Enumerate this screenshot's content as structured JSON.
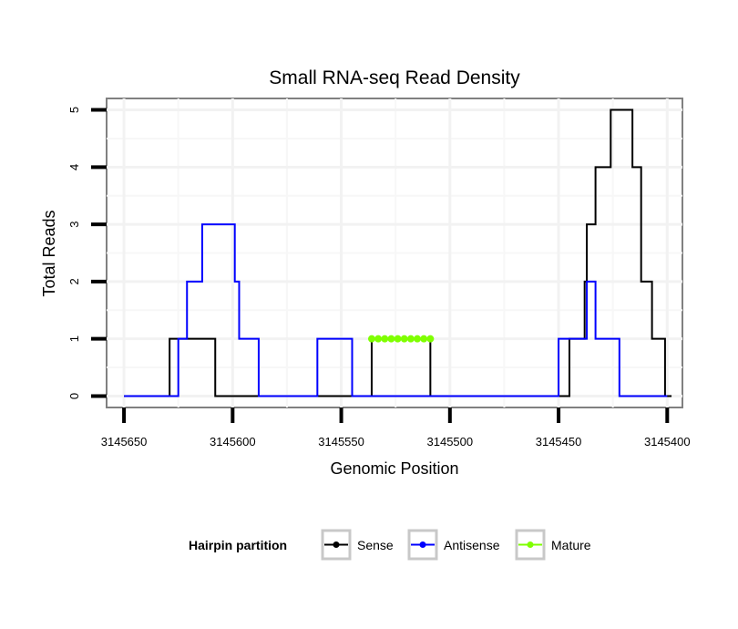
{
  "chart_data": {
    "type": "line",
    "title": "Small RNA-seq Read Density",
    "xlabel": "Genomic Position",
    "ylabel": "Total Reads",
    "x_reversed": true,
    "xlim": [
      3145658,
      3145393
    ],
    "ylim": [
      -0.2,
      5.2
    ],
    "xticks": [
      3145650,
      3145600,
      3145550,
      3145500,
      3145450,
      3145400
    ],
    "xtick_labels": [
      "3145650",
      "3145600",
      "3145550",
      "3145500",
      "3145450",
      "3145400"
    ],
    "yticks": [
      0,
      1,
      2,
      3,
      4,
      5
    ],
    "ytick_labels": [
      "0",
      "1",
      "2",
      "3",
      "4",
      "5"
    ],
    "grid": true,
    "legend": {
      "title": "Hairpin partition",
      "position": "bottom",
      "entries": [
        "Sense",
        "Antisense",
        "Mature"
      ]
    },
    "series": [
      {
        "name": "Sense",
        "color": "#000000",
        "step": true,
        "x": [
          3145650,
          3145629,
          3145608,
          3145536,
          3145509,
          3145500,
          3145450,
          3145445,
          3145440,
          3145438,
          3145437,
          3145435,
          3145433,
          3145430,
          3145426,
          3145416,
          3145412,
          3145407,
          3145401,
          3145398
        ],
        "y": [
          0,
          1,
          0,
          1,
          0,
          0,
          0,
          1,
          1,
          2,
          3,
          3,
          4,
          4,
          5,
          4,
          2,
          1,
          0,
          0
        ]
      },
      {
        "name": "Antisense",
        "color": "#0000ff",
        "step": true,
        "x": [
          3145650,
          3145625,
          3145621,
          3145614,
          3145599,
          3145597,
          3145593,
          3145588,
          3145561,
          3145545,
          3145500,
          3145450,
          3145440,
          3145437,
          3145433,
          3145422,
          3145418,
          3145400
        ],
        "y": [
          0,
          1,
          2,
          3,
          2,
          1,
          1,
          0,
          1,
          0,
          0,
          1,
          1,
          2,
          1,
          0,
          0,
          0
        ]
      },
      {
        "name": "Mature",
        "color": "#7fff00",
        "step": false,
        "x": [
          3145536,
          3145533,
          3145530,
          3145527,
          3145524,
          3145521,
          3145518,
          3145515,
          3145512,
          3145509
        ],
        "y": [
          1,
          1,
          1,
          1,
          1,
          1,
          1,
          1,
          1,
          1
        ]
      }
    ]
  }
}
